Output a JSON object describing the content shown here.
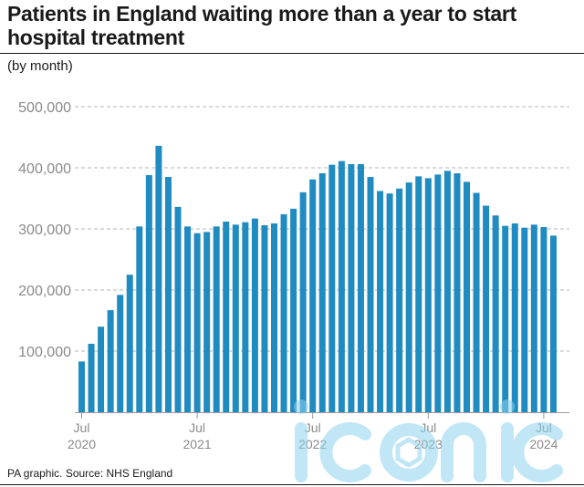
{
  "title": "Patients in England waiting more than a year to start hospital treatment",
  "subtitle": "(by month)",
  "source": "PA graphic. Source: NHS England",
  "colors": {
    "bar": "#1f8bc0",
    "grid": "#b5b5b5",
    "tick_text": "#8a8a8a",
    "watermark": "#bfe6f7"
  },
  "watermark": {
    "icon": "iconic-watermark-logo"
  },
  "chart_data": {
    "type": "bar",
    "title": "Patients in England waiting more than a year to start hospital treatment",
    "subtitle": "(by month)",
    "xlabel": "",
    "ylabel": "",
    "ylim": [
      0,
      500000
    ],
    "yticks": [
      100000,
      200000,
      300000,
      400000,
      500000
    ],
    "ytick_labels": [
      "100,000",
      "200,000",
      "300,000",
      "400,000",
      "500,000"
    ],
    "grid": true,
    "x_ticks": [
      {
        "index": 0,
        "month": "Jul",
        "year": "2020"
      },
      {
        "index": 12,
        "month": "Jul",
        "year": "2021"
      },
      {
        "index": 24,
        "month": "Jul",
        "year": "2022"
      },
      {
        "index": 36,
        "month": "Jul",
        "year": "2023"
      },
      {
        "index": 48,
        "month": "Jul",
        "year": "2024"
      }
    ],
    "values": [
      83000,
      112000,
      140000,
      167000,
      192000,
      225000,
      304000,
      388000,
      436000,
      385000,
      336000,
      304000,
      293000,
      295000,
      304000,
      312000,
      307000,
      311000,
      317000,
      306000,
      309000,
      324000,
      333000,
      360000,
      381000,
      391000,
      405000,
      411000,
      406000,
      406000,
      385000,
      362000,
      358000,
      366000,
      376000,
      386000,
      383000,
      389000,
      395000,
      391000,
      377000,
      359000,
      338000,
      322000,
      305000,
      309000,
      302000,
      307000,
      303000,
      289000
    ]
  }
}
